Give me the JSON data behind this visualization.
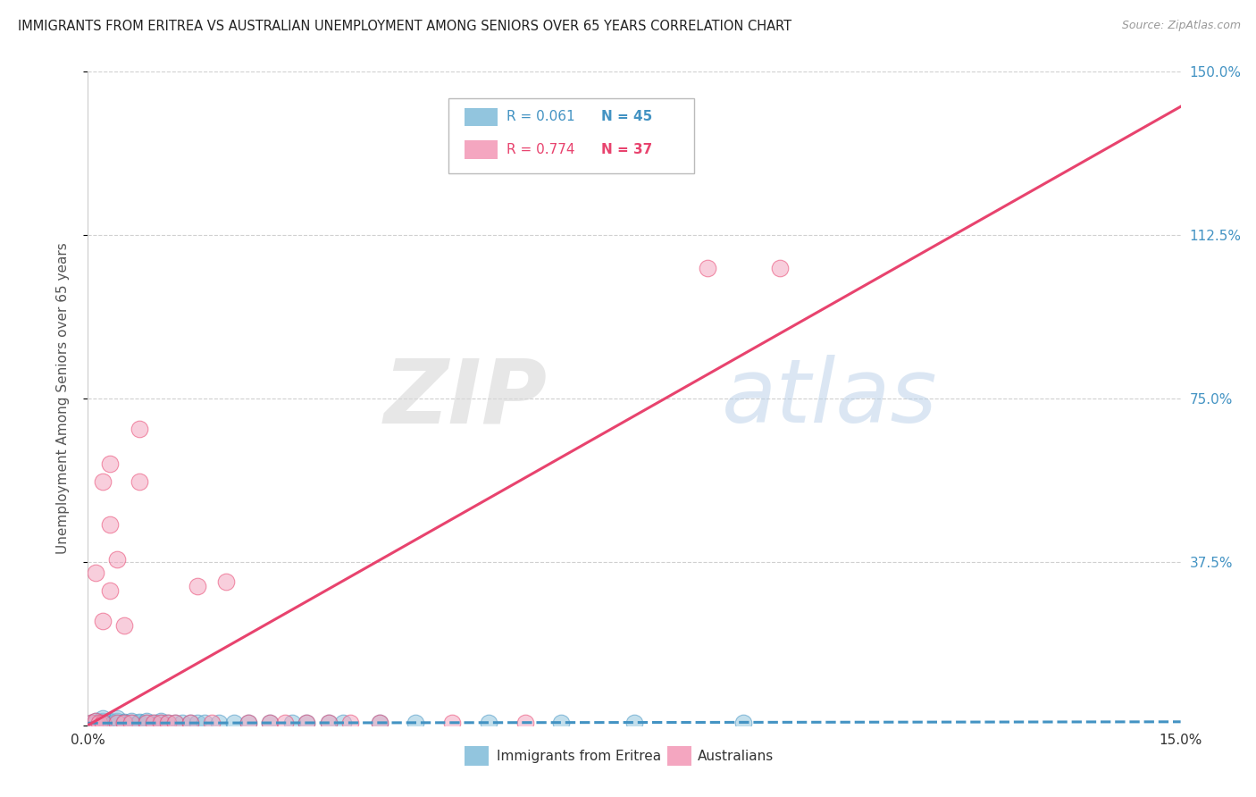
{
  "title": "IMMIGRANTS FROM ERITREA VS AUSTRALIAN UNEMPLOYMENT AMONG SENIORS OVER 65 YEARS CORRELATION CHART",
  "source": "Source: ZipAtlas.com",
  "ylabel": "Unemployment Among Seniors over 65 years",
  "legend_label1": "Immigrants from Eritrea",
  "legend_label2": "Australians",
  "legend_r1": "R = 0.061",
  "legend_n1": "N = 45",
  "legend_r2": "R = 0.774",
  "legend_n2": "N = 37",
  "color_blue": "#92c5de",
  "color_pink": "#f4a6c0",
  "color_blue_line": "#4393c3",
  "color_pink_line": "#e8436e",
  "color_right_axis": "#4393c3",
  "xlim": [
    0,
    0.15
  ],
  "ylim": [
    0,
    1.5
  ],
  "blue_scatter_x": [
    0.0005,
    0.001,
    0.001,
    0.0015,
    0.002,
    0.002,
    0.002,
    0.0025,
    0.003,
    0.003,
    0.0035,
    0.004,
    0.004,
    0.004,
    0.005,
    0.005,
    0.006,
    0.006,
    0.007,
    0.007,
    0.008,
    0.008,
    0.009,
    0.01,
    0.01,
    0.011,
    0.012,
    0.013,
    0.014,
    0.015,
    0.016,
    0.018,
    0.02,
    0.022,
    0.025,
    0.028,
    0.03,
    0.033,
    0.035,
    0.04,
    0.045,
    0.055,
    0.065,
    0.075,
    0.09
  ],
  "blue_scatter_y": [
    0.005,
    0.01,
    0.005,
    0.008,
    0.005,
    0.01,
    0.015,
    0.005,
    0.008,
    0.01,
    0.005,
    0.005,
    0.01,
    0.015,
    0.005,
    0.008,
    0.005,
    0.01,
    0.005,
    0.008,
    0.005,
    0.01,
    0.005,
    0.005,
    0.01,
    0.005,
    0.005,
    0.005,
    0.005,
    0.005,
    0.005,
    0.005,
    0.005,
    0.005,
    0.005,
    0.005,
    0.005,
    0.005,
    0.005,
    0.005,
    0.005,
    0.005,
    0.005,
    0.005,
    0.005
  ],
  "pink_scatter_x": [
    0.0005,
    0.001,
    0.001,
    0.0015,
    0.002,
    0.002,
    0.002,
    0.003,
    0.003,
    0.003,
    0.004,
    0.004,
    0.005,
    0.005,
    0.006,
    0.007,
    0.007,
    0.008,
    0.009,
    0.01,
    0.011,
    0.012,
    0.014,
    0.015,
    0.017,
    0.019,
    0.022,
    0.025,
    0.027,
    0.03,
    0.033,
    0.036,
    0.04,
    0.05,
    0.06,
    0.085,
    0.095
  ],
  "pink_scatter_y": [
    0.005,
    0.01,
    0.35,
    0.005,
    0.56,
    0.24,
    0.005,
    0.6,
    0.46,
    0.31,
    0.005,
    0.38,
    0.005,
    0.23,
    0.005,
    0.56,
    0.68,
    0.005,
    0.005,
    0.005,
    0.005,
    0.005,
    0.005,
    0.32,
    0.005,
    0.33,
    0.005,
    0.005,
    0.005,
    0.005,
    0.005,
    0.005,
    0.005,
    0.005,
    0.005,
    1.05,
    1.05
  ],
  "pink_line_x": [
    0.0,
    0.15
  ],
  "pink_line_y": [
    0.0,
    1.42
  ],
  "blue_line_x": [
    0.0,
    0.15
  ],
  "blue_line_y": [
    0.005,
    0.008
  ],
  "watermark_zip": "ZIP",
  "watermark_atlas": "atlas",
  "background_color": "#ffffff",
  "grid_color": "#d0d0d0",
  "grid_style": "--"
}
